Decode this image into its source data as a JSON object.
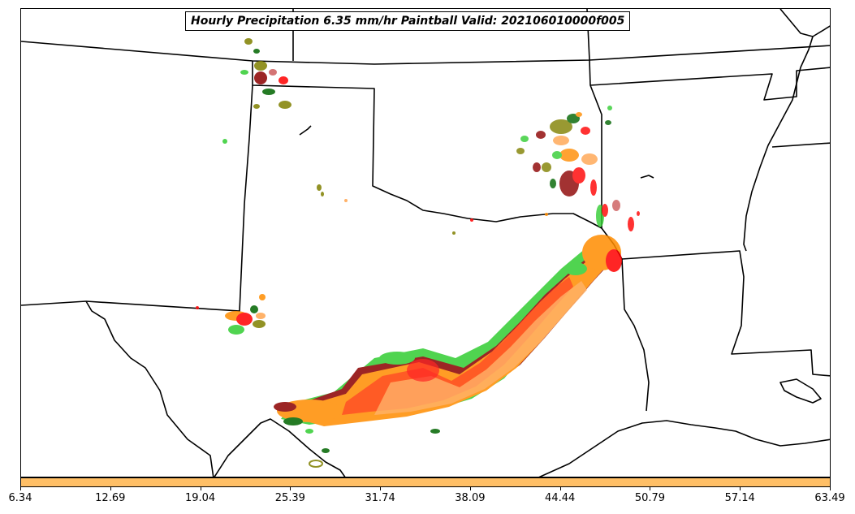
{
  "title": "Hourly Precipitation 6.35 mm/hr Paintball Valid: 202106010000f005",
  "colorbar": {
    "color": "#ffbf66",
    "ticks": [
      "6.34",
      "12.69",
      "19.04",
      "25.39",
      "31.74",
      "38.09",
      "44.44",
      "50.79",
      "57.14",
      "63.49"
    ]
  },
  "member_colors": [
    "#ff8c00",
    "#ff0000",
    "#8b0000",
    "#32cd32",
    "#006400",
    "#808000",
    "#ffa54f",
    "#cd5c5c"
  ]
}
